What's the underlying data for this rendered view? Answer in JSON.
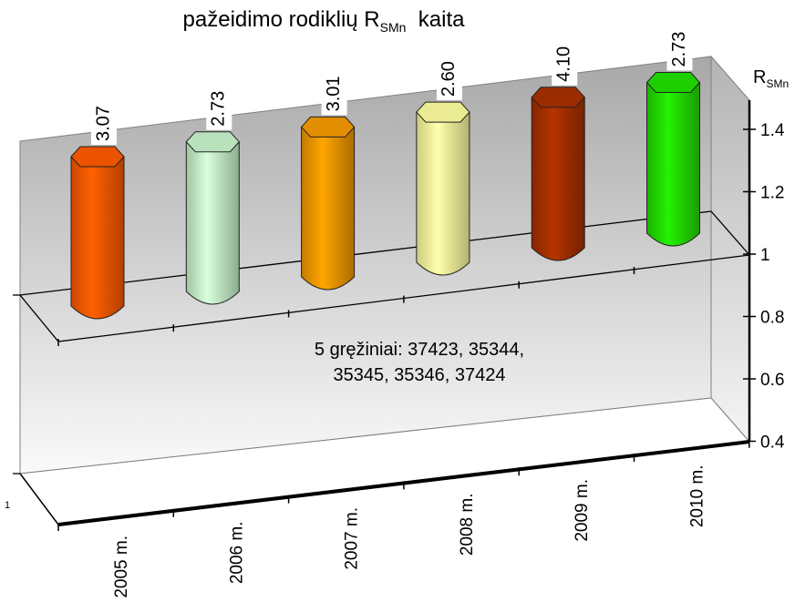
{
  "chart_data": {
    "type": "bar",
    "title_main": "pažeidimo rodiklių R",
    "title_sub": "SMn",
    "title_tail": "  kaita",
    "ylabel_main": "R",
    "ylabel_sub": "SMn",
    "categories": [
      "2005 m.",
      "2006 m.",
      "2007 m.",
      "2008 m.",
      "2009 m.",
      "2010 m."
    ],
    "values": [
      3.07,
      2.73,
      3.01,
      2.6,
      4.1,
      2.73
    ],
    "value_labels": [
      "3.07",
      "2.73",
      "3.01",
      "2.60",
      "4.10",
      "2.73"
    ],
    "colors": [
      "#ff5a00",
      "#c9f5cc",
      "#f59a00",
      "#ffffa0",
      "#a83000",
      "#22e000"
    ],
    "yticks": [
      "1.4",
      "1.2",
      "1",
      "0.8",
      "0.6",
      "0.4"
    ],
    "depth_tick": "1",
    "annotation": [
      "5 gręžiniai:  37423, 35344,",
      "35345, 35346, 37424"
    ],
    "grid": false
  }
}
